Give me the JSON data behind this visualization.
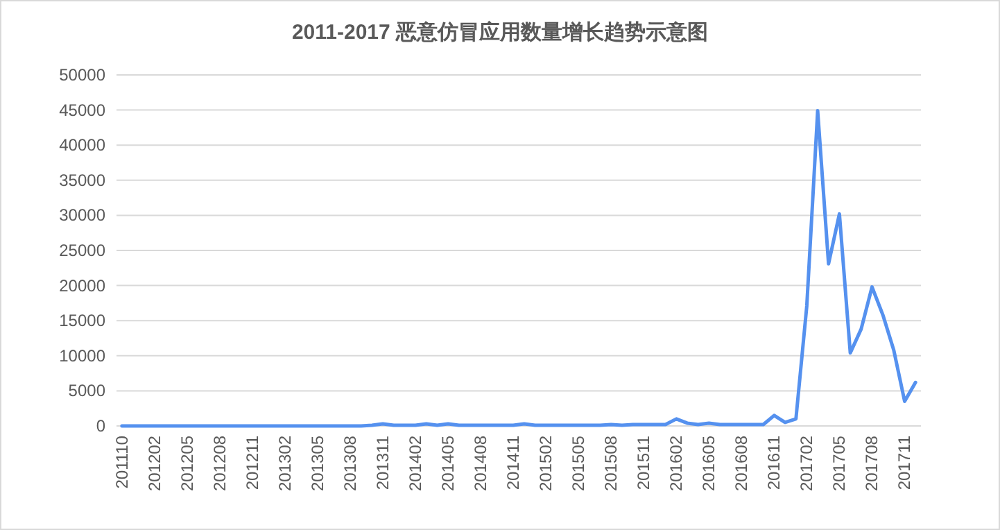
{
  "chart_data": {
    "type": "line",
    "title": "2011-2017 恶意仿冒应用数量增长趋势示意图",
    "categories": [
      "201110",
      null,
      null,
      "201202",
      null,
      null,
      "201205",
      null,
      null,
      "201208",
      null,
      null,
      "201211",
      null,
      null,
      "201302",
      null,
      null,
      "201305",
      null,
      null,
      "201308",
      null,
      null,
      "201311",
      null,
      null,
      "201402",
      null,
      null,
      "201405",
      null,
      null,
      "201408",
      null,
      null,
      "201411",
      null,
      null,
      "201502",
      null,
      null,
      "201505",
      null,
      null,
      "201508",
      null,
      null,
      "201511",
      null,
      null,
      "201602",
      null,
      null,
      "201605",
      null,
      null,
      "201608",
      null,
      null,
      "201611",
      null,
      null,
      "201702",
      null,
      null,
      "201705",
      null,
      null,
      "201708",
      null,
      null,
      "201711",
      null
    ],
    "series": [
      {
        "color": "#5591ef",
        "values": [
          0,
          0,
          0,
          0,
          0,
          0,
          0,
          0,
          0,
          0,
          0,
          0,
          0,
          0,
          0,
          0,
          0,
          0,
          0,
          0,
          0,
          0,
          0,
          100,
          300,
          100,
          100,
          100,
          300,
          100,
          300,
          100,
          100,
          100,
          100,
          100,
          100,
          300,
          100,
          100,
          100,
          100,
          100,
          100,
          100,
          200,
          100,
          200,
          200,
          200,
          200,
          1000,
          400,
          200,
          400,
          200,
          200,
          200,
          200,
          200,
          1500,
          500,
          1000,
          17100,
          44900,
          23100,
          30200,
          10400,
          13800,
          19800,
          15800,
          10800,
          3500,
          6200
        ]
      }
    ],
    "ylim": [
      0,
      50000
    ],
    "yticks": [
      0,
      5000,
      10000,
      15000,
      20000,
      25000,
      30000,
      35000,
      40000,
      45000,
      50000
    ],
    "grid": "y",
    "marker": "none",
    "line_style": "solid"
  }
}
